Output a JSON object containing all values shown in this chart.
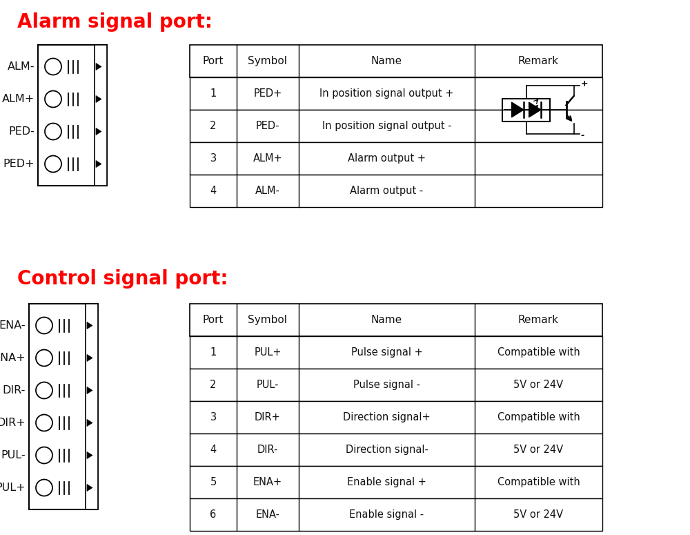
{
  "bg_color": "#ffffff",
  "title_alarm": "Alarm signal port:",
  "title_control": "Control signal port:",
  "title_color": "#ff0000",
  "title_fontsize": 20,
  "alarm_labels": [
    "ALM-",
    "ALM+",
    "PED-",
    "PED+"
  ],
  "control_labels": [
    "ENA-",
    "ENA+",
    "DIR-",
    "DIR+",
    "PUL-",
    "PUL+"
  ],
  "alarm_table_headers": [
    "Port",
    "Symbol",
    "Name",
    "Remark"
  ],
  "alarm_table_rows": [
    [
      "1",
      "PED+",
      "In position signal output +",
      ""
    ],
    [
      "2",
      "PED-",
      "In position signal output -",
      ""
    ],
    [
      "3",
      "ALM+",
      "Alarm output +",
      ""
    ],
    [
      "4",
      "ALM-",
      "Alarm output -",
      ""
    ]
  ],
  "control_table_headers": [
    "Port",
    "Symbol",
    "Name",
    "Remark"
  ],
  "control_table_rows": [
    [
      "1",
      "PUL+",
      "Pulse signal +",
      "Compatible with"
    ],
    [
      "2",
      "PUL-",
      "Pulse signal -",
      "5V or 24V"
    ],
    [
      "3",
      "DIR+",
      "Direction signal+",
      "Compatible with"
    ],
    [
      "4",
      "DIR-",
      "Direction signal-",
      "5V or 24V"
    ],
    [
      "5",
      "ENA+",
      "Enable signal +",
      "Compatible with"
    ],
    [
      "6",
      "ENA-",
      "Enable signal -",
      "5V or 24V"
    ]
  ],
  "text_color": "#111111",
  "line_color": "#000000",
  "table_fontsize": 10.5,
  "label_fontsize": 11.5,
  "header_fontsize": 11
}
